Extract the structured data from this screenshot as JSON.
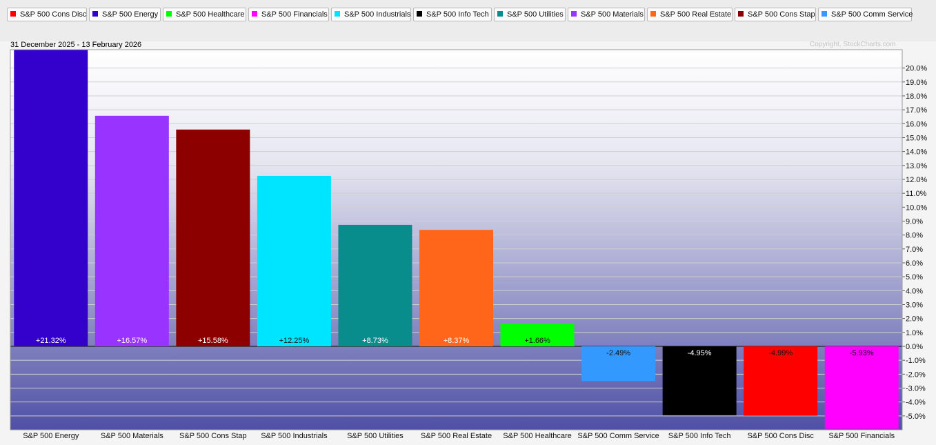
{
  "header": {
    "date_range": "31 December 2025 - 13 February 2026",
    "copyright": "Copyright, StockCharts.com"
  },
  "legend": [
    {
      "label": "S&P 500 Cons Disc",
      "color": "#ff0000"
    },
    {
      "label": "S&P 500 Energy",
      "color": "#3300cc"
    },
    {
      "label": "S&P 500 Healthcare",
      "color": "#00ff00"
    },
    {
      "label": "S&P 500 Financials",
      "color": "#ff00ff"
    },
    {
      "label": "S&P 500 Industrials",
      "color": "#00e5ff"
    },
    {
      "label": "S&P 500 Info Tech",
      "color": "#000000"
    },
    {
      "label": "S&P 500 Utilities",
      "color": "#088c8c"
    },
    {
      "label": "S&P 500 Materials",
      "color": "#9933ff"
    },
    {
      "label": "S&P 500 Real Estate",
      "color": "#ff6619"
    },
    {
      "label": "S&P 500 Cons Stap",
      "color": "#8c0000"
    },
    {
      "label": "S&P 500 Comm Service",
      "color": "#3399ff"
    }
  ],
  "chart_data": {
    "type": "bar",
    "title": "",
    "xlabel": "",
    "ylabel": "",
    "ylim": [
      -6.0,
      21.32
    ],
    "y_ticks": [
      "20.0%",
      "19.0%",
      "18.0%",
      "17.0%",
      "16.0%",
      "15.0%",
      "14.0%",
      "13.0%",
      "12.0%",
      "11.0%",
      "10.0%",
      "9.0%",
      "8.0%",
      "7.0%",
      "6.0%",
      "5.0%",
      "4.0%",
      "3.0%",
      "2.0%",
      "1.0%",
      "0.0%",
      "-1.0%",
      "-2.0%",
      "-3.0%",
      "-4.0%",
      "-5.0%"
    ],
    "y_tick_values": [
      20,
      19,
      18,
      17,
      16,
      15,
      14,
      13,
      12,
      11,
      10,
      9,
      8,
      7,
      6,
      5,
      4,
      3,
      2,
      1,
      0,
      -1,
      -2,
      -3,
      -4,
      -5
    ],
    "grid": true,
    "categories": [
      "S&P 500 Energy",
      "S&P 500 Materials",
      "S&P 500 Cons Stap",
      "S&P 500 Industrials",
      "S&P 500 Utilities",
      "S&P 500 Real Estate",
      "S&P 500 Healthcare",
      "S&P 500 Comm Service",
      "S&P 500 Info Tech",
      "S&P 500 Cons Disc",
      "S&P 500 Financials"
    ],
    "values": [
      21.32,
      16.57,
      15.58,
      12.25,
      8.73,
      8.37,
      1.66,
      -2.49,
      -4.95,
      -4.99,
      -5.93
    ],
    "value_labels": [
      "+21.32%",
      "+16.57%",
      "+15.58%",
      "+12.25%",
      "+8.73%",
      "+8.37%",
      "+1.66%",
      "-2.49%",
      "-4.95%",
      "-4.99%",
      "-5.93%"
    ],
    "colors": [
      "#3300cc",
      "#9933ff",
      "#8c0000",
      "#00e5ff",
      "#088c8c",
      "#ff6619",
      "#00ff00",
      "#3399ff",
      "#000000",
      "#ff0000",
      "#ff00ff"
    ],
    "label_colors": [
      "#ffffff",
      "#ffffff",
      "#ffffff",
      "#111111",
      "#ffffff",
      "#ffffff",
      "#111111",
      "#111111",
      "#ffffff",
      "#111111",
      "#111111"
    ]
  }
}
